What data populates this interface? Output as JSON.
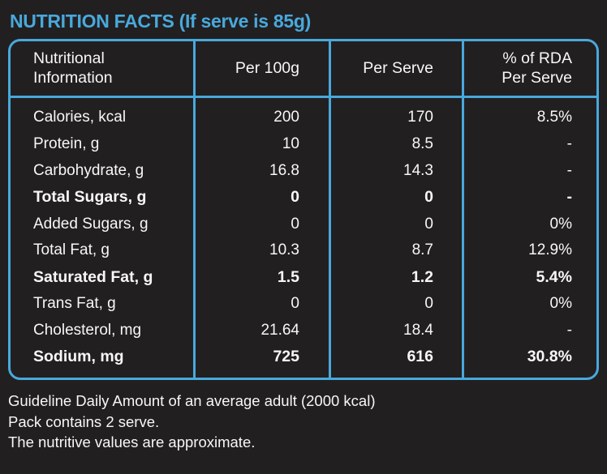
{
  "colors": {
    "background": "#221F21",
    "accent": "#48A9DB",
    "text": "#F7F7F7"
  },
  "header": {
    "title": "NUTRITION FACTS (If serve is 85g)"
  },
  "table": {
    "headers": {
      "info": "Nutritional\nInformation",
      "per_100g": "Per 100g",
      "per_serve": "Per Serve",
      "rda": "% of RDA\nPer Serve"
    },
    "rows": [
      {
        "label": "Calories, kcal",
        "per_100g": "200",
        "per_serve": "170",
        "rda_percent": "8.5%"
      },
      {
        "label": "Protein, g",
        "per_100g": "10",
        "per_serve": "8.5",
        "rda_percent": "-"
      },
      {
        "label": "Carbohydrate, g",
        "per_100g": "16.8",
        "per_serve": "14.3",
        "rda_percent": "-"
      },
      {
        "label": "Total Sugars, g",
        "per_100g": "0",
        "per_serve": "0",
        "rda_percent": "-"
      },
      {
        "label": "Added Sugars, g",
        "per_100g": "0",
        "per_serve": "0",
        "rda_percent": "0%"
      },
      {
        "label": "Total Fat, g",
        "per_100g": "10.3",
        "per_serve": "8.7",
        "rda_percent": "12.9%"
      },
      {
        "label": "Saturated Fat, g",
        "per_100g": "1.5",
        "per_serve": "1.2",
        "rda_percent": "5.4%"
      },
      {
        "label": "Trans Fat, g",
        "per_100g": "0",
        "per_serve": "0",
        "rda_percent": "0%"
      },
      {
        "label": "Cholesterol, mg",
        "per_100g": "21.64",
        "per_serve": "18.4",
        "rda_percent": "-"
      },
      {
        "label": "Sodium, mg",
        "per_100g": "725",
        "per_serve": "616",
        "rda_percent": "30.8%"
      }
    ]
  },
  "footer": {
    "lines": [
      "Guideline Daily Amount of an average adult (2000 kcal)",
      "Pack contains 2 serve.",
      "The nutritive values are approximate."
    ]
  }
}
